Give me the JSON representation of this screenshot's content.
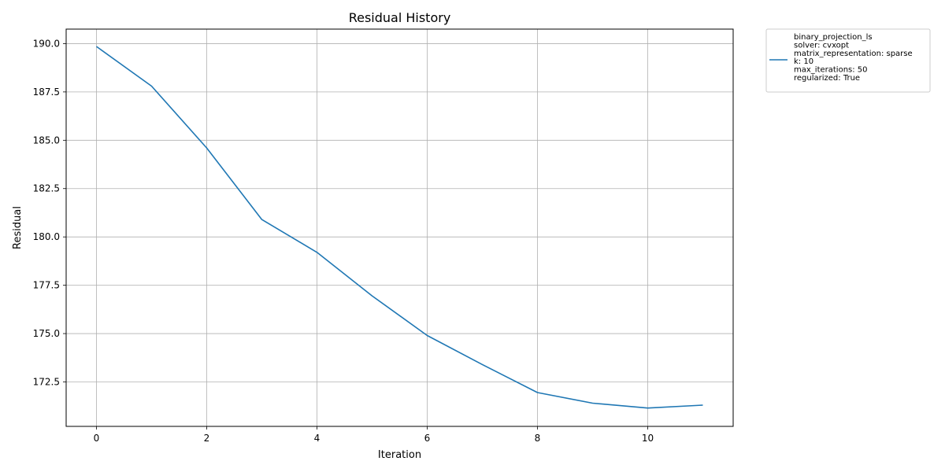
{
  "chart_data": {
    "type": "line",
    "title": "Residual History",
    "xlabel": "Iteration",
    "ylabel": "Residual",
    "xlim": [
      -0.55,
      11.55
    ],
    "ylim": [
      170.2,
      190.75
    ],
    "xticks": [
      0,
      2,
      4,
      6,
      8,
      10
    ],
    "xtick_labels": [
      "0",
      "2",
      "4",
      "6",
      "8",
      "10"
    ],
    "yticks": [
      172.5,
      175.0,
      177.5,
      180.0,
      182.5,
      185.0,
      187.5,
      190.0
    ],
    "ytick_labels": [
      "172.5",
      "175.0",
      "177.5",
      "180.0",
      "182.5",
      "185.0",
      "187.5",
      "190.0"
    ],
    "grid": true,
    "legend_position": "outside-top-right",
    "color": "#1f77b4",
    "series": [
      {
        "name": "binary_projection_ls\nsolver: cvxopt\nmatrix_representation: sparse\nk: 10\nmax_iterations: 50\nregularized: True",
        "legend_lines": [
          "binary_projection_ls",
          "solver: cvxopt",
          "matrix_representation: sparse",
          "k: 10",
          "max_iterations: 50",
          "regularized: True"
        ],
        "x": [
          0,
          1,
          2,
          3,
          4,
          5,
          6,
          7,
          8,
          9,
          10,
          11
        ],
        "y": [
          189.85,
          187.8,
          184.6,
          180.9,
          179.2,
          176.95,
          174.9,
          173.4,
          171.95,
          171.4,
          171.15,
          171.3
        ]
      }
    ]
  }
}
